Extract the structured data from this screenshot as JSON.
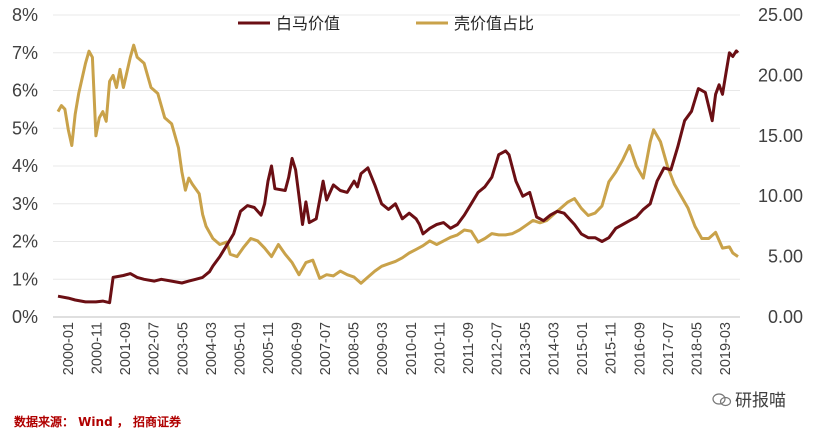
{
  "chart_data": {
    "type": "line",
    "title": "",
    "legend_position": "top",
    "grid": true,
    "left_axis": {
      "ticks": [
        "0%",
        "1%",
        "2%",
        "3%",
        "4%",
        "5%",
        "6%",
        "7%",
        "8%"
      ],
      "range": [
        0,
        8
      ]
    },
    "right_axis": {
      "ticks": [
        "0.00",
        "5.00",
        "10.00",
        "15.00",
        "20.00",
        "25.00"
      ],
      "range": [
        0,
        25
      ]
    },
    "x_ticks": [
      "2000-01",
      "2000-11",
      "2001-09",
      "2002-07",
      "2003-05",
      "2004-03",
      "2005-01",
      "2005-11",
      "2006-09",
      "2007-07",
      "2008-05",
      "2009-03",
      "2010-01",
      "2010-11",
      "2011-09",
      "2012-07",
      "2013-05",
      "2014-03",
      "2015-01",
      "2015-11",
      "2016-09",
      "2017-07",
      "2018-05",
      "2019-03"
    ],
    "x_range": [
      2000.0,
      2019.75
    ],
    "series": [
      {
        "name": "白马价值",
        "axis": "left",
        "color": "#6b0f14",
        "points": [
          [
            2000.0,
            0.55
          ],
          [
            2000.3,
            0.5
          ],
          [
            2000.5,
            0.45
          ],
          [
            2000.8,
            0.4
          ],
          [
            2001.1,
            0.4
          ],
          [
            2001.3,
            0.42
          ],
          [
            2001.5,
            0.38
          ],
          [
            2001.6,
            1.05
          ],
          [
            2001.9,
            1.1
          ],
          [
            2002.1,
            1.15
          ],
          [
            2002.3,
            1.05
          ],
          [
            2002.5,
            1.0
          ],
          [
            2002.8,
            0.95
          ],
          [
            2003.0,
            1.0
          ],
          [
            2003.3,
            0.95
          ],
          [
            2003.6,
            0.9
          ],
          [
            2003.8,
            0.95
          ],
          [
            2004.0,
            1.0
          ],
          [
            2004.2,
            1.05
          ],
          [
            2004.4,
            1.2
          ],
          [
            2004.5,
            1.35
          ],
          [
            2004.7,
            1.6
          ],
          [
            2004.9,
            1.9
          ],
          [
            2005.1,
            2.2
          ],
          [
            2005.3,
            2.8
          ],
          [
            2005.5,
            2.95
          ],
          [
            2005.7,
            2.9
          ],
          [
            2005.9,
            2.7
          ],
          [
            2006.0,
            3.0
          ],
          [
            2006.1,
            3.6
          ],
          [
            2006.2,
            4.0
          ],
          [
            2006.3,
            3.4
          ],
          [
            2006.6,
            3.35
          ],
          [
            2006.7,
            3.7
          ],
          [
            2006.8,
            4.2
          ],
          [
            2006.9,
            3.9
          ],
          [
            2007.0,
            3.2
          ],
          [
            2007.1,
            2.45
          ],
          [
            2007.2,
            3.05
          ],
          [
            2007.3,
            2.5
          ],
          [
            2007.5,
            2.6
          ],
          [
            2007.6,
            3.1
          ],
          [
            2007.7,
            3.6
          ],
          [
            2007.8,
            3.1
          ],
          [
            2008.0,
            3.5
          ],
          [
            2008.2,
            3.35
          ],
          [
            2008.4,
            3.3
          ],
          [
            2008.6,
            3.6
          ],
          [
            2008.7,
            3.45
          ],
          [
            2008.8,
            3.8
          ],
          [
            2009.0,
            3.95
          ],
          [
            2009.2,
            3.5
          ],
          [
            2009.4,
            3.0
          ],
          [
            2009.6,
            2.85
          ],
          [
            2009.8,
            3.0
          ],
          [
            2010.0,
            2.6
          ],
          [
            2010.2,
            2.75
          ],
          [
            2010.4,
            2.6
          ],
          [
            2010.5,
            2.45
          ],
          [
            2010.6,
            2.2
          ],
          [
            2010.8,
            2.35
          ],
          [
            2011.0,
            2.45
          ],
          [
            2011.2,
            2.5
          ],
          [
            2011.4,
            2.35
          ],
          [
            2011.6,
            2.45
          ],
          [
            2011.8,
            2.7
          ],
          [
            2012.0,
            3.0
          ],
          [
            2012.2,
            3.3
          ],
          [
            2012.4,
            3.45
          ],
          [
            2012.6,
            3.7
          ],
          [
            2012.8,
            4.3
          ],
          [
            2013.0,
            4.4
          ],
          [
            2013.1,
            4.3
          ],
          [
            2013.3,
            3.6
          ],
          [
            2013.5,
            3.2
          ],
          [
            2013.7,
            3.3
          ],
          [
            2013.9,
            2.65
          ],
          [
            2014.1,
            2.55
          ],
          [
            2014.3,
            2.7
          ],
          [
            2014.5,
            2.8
          ],
          [
            2014.7,
            2.75
          ],
          [
            2015.0,
            2.45
          ],
          [
            2015.2,
            2.2
          ],
          [
            2015.4,
            2.1
          ],
          [
            2015.6,
            2.1
          ],
          [
            2015.8,
            2.0
          ],
          [
            2016.0,
            2.1
          ],
          [
            2016.2,
            2.35
          ],
          [
            2016.4,
            2.45
          ],
          [
            2016.6,
            2.55
          ],
          [
            2016.8,
            2.65
          ],
          [
            2017.0,
            2.85
          ],
          [
            2017.2,
            3.0
          ],
          [
            2017.4,
            3.6
          ],
          [
            2017.6,
            3.95
          ],
          [
            2017.8,
            3.9
          ],
          [
            2018.0,
            4.5
          ],
          [
            2018.2,
            5.2
          ],
          [
            2018.4,
            5.45
          ],
          [
            2018.6,
            6.05
          ],
          [
            2018.8,
            5.95
          ],
          [
            2019.0,
            5.2
          ],
          [
            2019.1,
            5.9
          ],
          [
            2019.2,
            6.15
          ],
          [
            2019.3,
            5.9
          ],
          [
            2019.4,
            6.45
          ],
          [
            2019.5,
            7.0
          ],
          [
            2019.6,
            6.9
          ],
          [
            2019.7,
            7.05
          ],
          [
            2019.75,
            7.0
          ]
        ]
      },
      {
        "name": "壳价值占比",
        "axis": "right",
        "color": "#c9a24a",
        "points": [
          [
            2000.0,
            17.0
          ],
          [
            2000.1,
            17.5
          ],
          [
            2000.2,
            17.2
          ],
          [
            2000.3,
            15.5
          ],
          [
            2000.4,
            14.2
          ],
          [
            2000.5,
            16.8
          ],
          [
            2000.6,
            18.5
          ],
          [
            2000.8,
            21.0
          ],
          [
            2000.9,
            22.0
          ],
          [
            2001.0,
            21.5
          ],
          [
            2001.1,
            15.0
          ],
          [
            2001.2,
            16.5
          ],
          [
            2001.3,
            17.0
          ],
          [
            2001.4,
            16.2
          ],
          [
            2001.5,
            19.5
          ],
          [
            2001.6,
            20.0
          ],
          [
            2001.7,
            19.0
          ],
          [
            2001.8,
            20.5
          ],
          [
            2001.9,
            19.0
          ],
          [
            2002.1,
            21.5
          ],
          [
            2002.2,
            22.5
          ],
          [
            2002.3,
            21.5
          ],
          [
            2002.5,
            21.0
          ],
          [
            2002.7,
            19.0
          ],
          [
            2002.9,
            18.5
          ],
          [
            2003.1,
            16.5
          ],
          [
            2003.3,
            16.0
          ],
          [
            2003.5,
            14.0
          ],
          [
            2003.6,
            12.0
          ],
          [
            2003.7,
            10.5
          ],
          [
            2003.8,
            11.5
          ],
          [
            2003.9,
            11.0
          ],
          [
            2004.1,
            10.2
          ],
          [
            2004.2,
            8.5
          ],
          [
            2004.3,
            7.5
          ],
          [
            2004.5,
            6.5
          ],
          [
            2004.7,
            6.0
          ],
          [
            2004.9,
            6.2
          ],
          [
            2005.0,
            5.2
          ],
          [
            2005.2,
            5.0
          ],
          [
            2005.4,
            5.8
          ],
          [
            2005.6,
            6.5
          ],
          [
            2005.8,
            6.3
          ],
          [
            2006.0,
            5.7
          ],
          [
            2006.2,
            5.0
          ],
          [
            2006.4,
            6.0
          ],
          [
            2006.6,
            5.2
          ],
          [
            2006.8,
            4.5
          ],
          [
            2007.0,
            3.5
          ],
          [
            2007.2,
            4.5
          ],
          [
            2007.4,
            4.7
          ],
          [
            2007.6,
            3.2
          ],
          [
            2007.8,
            3.5
          ],
          [
            2008.0,
            3.4
          ],
          [
            2008.2,
            3.8
          ],
          [
            2008.4,
            3.5
          ],
          [
            2008.6,
            3.3
          ],
          [
            2008.8,
            2.8
          ],
          [
            2009.0,
            3.3
          ],
          [
            2009.2,
            3.8
          ],
          [
            2009.4,
            4.2
          ],
          [
            2009.6,
            4.4
          ],
          [
            2009.8,
            4.6
          ],
          [
            2010.0,
            4.9
          ],
          [
            2010.2,
            5.3
          ],
          [
            2010.4,
            5.6
          ],
          [
            2010.6,
            5.9
          ],
          [
            2010.8,
            6.3
          ],
          [
            2011.0,
            6.0
          ],
          [
            2011.2,
            6.3
          ],
          [
            2011.4,
            6.6
          ],
          [
            2011.6,
            6.8
          ],
          [
            2011.8,
            7.2
          ],
          [
            2012.0,
            7.1
          ],
          [
            2012.2,
            6.2
          ],
          [
            2012.4,
            6.5
          ],
          [
            2012.6,
            6.9
          ],
          [
            2012.8,
            6.8
          ],
          [
            2013.0,
            6.8
          ],
          [
            2013.2,
            6.9
          ],
          [
            2013.4,
            7.2
          ],
          [
            2013.6,
            7.6
          ],
          [
            2013.8,
            8.0
          ],
          [
            2014.0,
            7.8
          ],
          [
            2014.2,
            8.0
          ],
          [
            2014.4,
            8.5
          ],
          [
            2014.6,
            9.0
          ],
          [
            2014.8,
            9.5
          ],
          [
            2015.0,
            9.8
          ],
          [
            2015.2,
            9.0
          ],
          [
            2015.4,
            8.4
          ],
          [
            2015.6,
            8.6
          ],
          [
            2015.8,
            9.2
          ],
          [
            2016.0,
            11.2
          ],
          [
            2016.2,
            12.0
          ],
          [
            2016.4,
            13.0
          ],
          [
            2016.6,
            14.2
          ],
          [
            2016.8,
            12.5
          ],
          [
            2017.0,
            11.5
          ],
          [
            2017.1,
            13.0
          ],
          [
            2017.2,
            14.5
          ],
          [
            2017.3,
            15.5
          ],
          [
            2017.5,
            14.5
          ],
          [
            2017.7,
            12.5
          ],
          [
            2017.9,
            11.0
          ],
          [
            2018.1,
            10.0
          ],
          [
            2018.3,
            9.0
          ],
          [
            2018.5,
            7.5
          ],
          [
            2018.7,
            6.5
          ],
          [
            2018.9,
            6.5
          ],
          [
            2019.1,
            7.0
          ],
          [
            2019.3,
            5.7
          ],
          [
            2019.5,
            5.8
          ],
          [
            2019.6,
            5.3
          ],
          [
            2019.75,
            5.0
          ]
        ]
      }
    ]
  },
  "footer": {
    "source": "数据来源： Wind ， 招商证券",
    "watermark": "研报喵"
  }
}
